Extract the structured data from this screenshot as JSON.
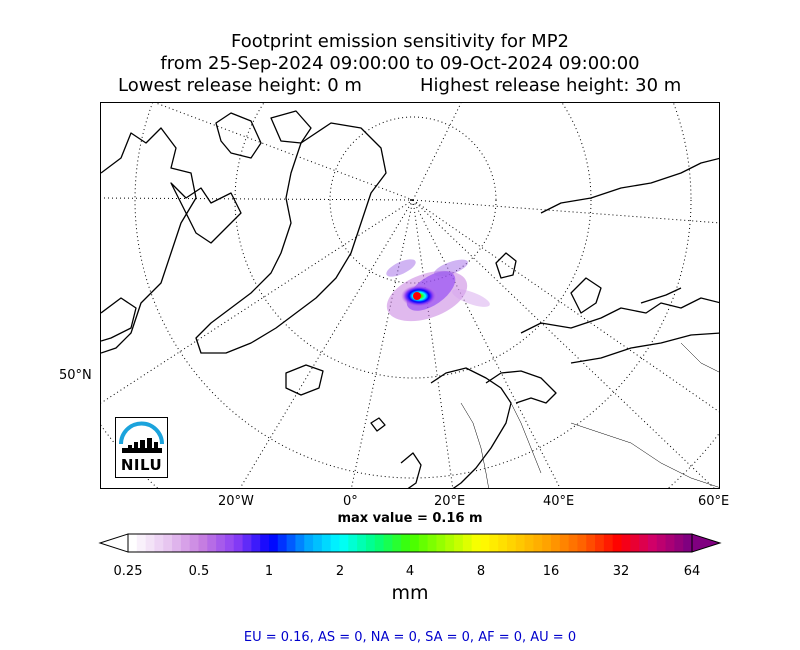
{
  "title": {
    "line1": "Footprint emission sensitivity for MP2",
    "line2": "from 25-Sep-2024 09:00:00 to 09-Oct-2024 09:00:00",
    "lowest_release": "Lowest release height: 0 m",
    "highest_release": "Highest release height: 30 m"
  },
  "map": {
    "projection": "polar stereographic",
    "lat_labels": [
      "50°N"
    ],
    "lon_labels": [
      "20°W",
      "0°",
      "20°E",
      "40°E",
      "60°E"
    ],
    "grid": "dotted",
    "coastline_color": "#000000"
  },
  "logo": {
    "text": "NILU",
    "arc_color": "#1ba3dc"
  },
  "max_value": "max value = 0.16 m",
  "colorbar": {
    "tick_labels": [
      "0.25",
      "0.5",
      "1",
      "2",
      "4",
      "8",
      "16",
      "32",
      "64"
    ],
    "unit": "mm",
    "colors": [
      "#ffffff",
      "#e8c7f0",
      "#c77fe0",
      "#8a3df5",
      "#0000ff",
      "#00a0ff",
      "#00ffff",
      "#00ff80",
      "#40ff00",
      "#a0ff00",
      "#ffff00",
      "#ffd000",
      "#ffa000",
      "#ff6000",
      "#ff0000",
      "#d0006a",
      "#800080"
    ]
  },
  "regions": "EU = 0.16,  AS = 0,  NA = 0,  SA = 0,  AF = 0,  AU = 0"
}
